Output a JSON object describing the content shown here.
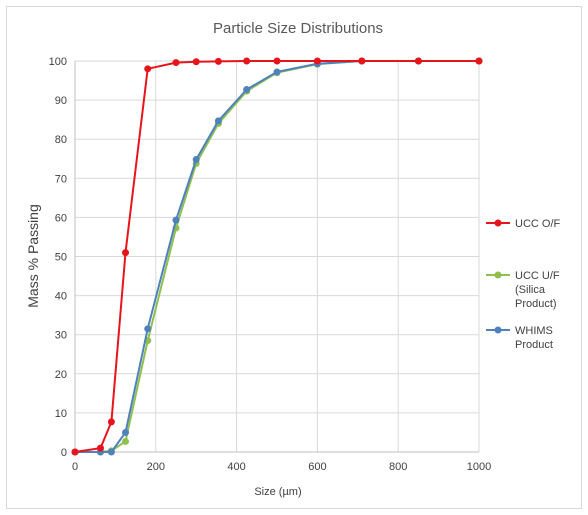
{
  "chart_data": {
    "type": "scatter",
    "title": "Particle Size Distributions",
    "xlabel": "Size (µm)",
    "ylabel": "Mass % Passing",
    "xlim": [
      0,
      1000
    ],
    "ylim": [
      0,
      100
    ],
    "xticks": [
      0,
      200,
      400,
      600,
      800,
      1000
    ],
    "yticks": [
      0,
      10,
      20,
      30,
      40,
      50,
      60,
      70,
      80,
      90,
      100
    ],
    "grid": true,
    "legend_position": "right",
    "series": [
      {
        "name": "UCC O/F",
        "legend_lines": [
          "UCC O/F"
        ],
        "color": "#e8141b",
        "x": [
          0,
          63,
          90,
          125,
          180,
          250,
          300,
          355,
          425,
          500,
          600,
          710,
          850,
          1000
        ],
        "y": [
          0,
          1,
          7.7,
          51,
          98,
          99.6,
          99.8,
          99.9,
          100,
          100,
          100,
          100,
          100,
          100
        ]
      },
      {
        "name": "UCC U/F (Silica Product)",
        "legend_lines": [
          "UCC U/F",
          "(Silica",
          "Product)"
        ],
        "color": "#8fbf4d",
        "x": [
          0,
          63,
          90,
          125,
          180,
          250,
          300,
          355,
          425,
          500,
          600,
          710,
          850,
          1000
        ],
        "y": [
          0,
          0,
          0.3,
          2.7,
          28.5,
          57.3,
          73.8,
          84,
          92.3,
          97,
          99.2,
          100,
          100,
          100
        ]
      },
      {
        "name": "WHIMS Product",
        "legend_lines": [
          "WHIMS",
          "Product"
        ],
        "color": "#4f81bd",
        "x": [
          0,
          63,
          90,
          125,
          180,
          250,
          300,
          355,
          425,
          500,
          600,
          710,
          850,
          1000
        ],
        "y": [
          0,
          0,
          0,
          5,
          31.5,
          59.3,
          74.8,
          84.7,
          92.7,
          97.2,
          99.3,
          100,
          100,
          100
        ]
      }
    ]
  }
}
